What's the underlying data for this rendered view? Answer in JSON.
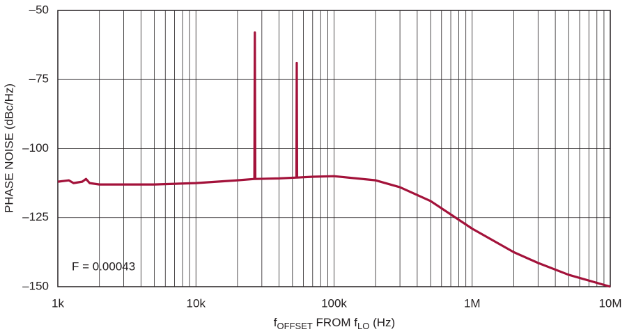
{
  "chart_data": {
    "type": "line",
    "y_label": "PHASE NOISE (dBc/Hz)",
    "x_label": [
      {
        "text": "f"
      },
      {
        "text": "OFFSET",
        "sub": true
      },
      {
        "text": " FROM f"
      },
      {
        "text": "LO",
        "sub": true
      },
      {
        "text": " (Hz)"
      }
    ],
    "annotation": "F = 0.00043",
    "log_x": true,
    "grid": true,
    "xlim": [
      1000,
      10000000
    ],
    "ylim": [
      -150,
      -50
    ],
    "xticks": [
      {
        "value": 1000,
        "label": "1k"
      },
      {
        "value": 10000,
        "label": "10k"
      },
      {
        "value": 100000,
        "label": "100k"
      },
      {
        "value": 1000000,
        "label": "1M"
      },
      {
        "value": 10000000,
        "label": "10M"
      }
    ],
    "xminorticks": [
      2000,
      3000,
      4000,
      5000,
      6000,
      7000,
      8000,
      9000,
      20000,
      30000,
      40000,
      50000,
      60000,
      70000,
      80000,
      90000,
      200000,
      300000,
      400000,
      500000,
      600000,
      700000,
      800000,
      900000,
      2000000,
      3000000,
      4000000,
      5000000,
      6000000,
      7000000,
      8000000,
      9000000
    ],
    "yticks": [
      {
        "value": -50,
        "label": "–50"
      },
      {
        "value": -75,
        "label": "–75"
      },
      {
        "value": -100,
        "label": "–100"
      },
      {
        "value": -125,
        "label": "–125"
      },
      {
        "value": -150,
        "label": "–150"
      }
    ],
    "series": [
      {
        "color": "#a3123a",
        "x": [
          1000,
          1200,
          1300,
          1500,
          1600,
          1700,
          2000,
          3000,
          5000,
          10000,
          20000,
          26500,
          26700,
          26900,
          40000,
          53400,
          53700,
          54000,
          70000,
          100000,
          200000,
          300000,
          500000,
          1000000,
          2000000,
          3000000,
          5000000,
          10000000
        ],
        "values": [
          -112,
          -111.5,
          -112.5,
          -112,
          -111,
          -112.5,
          -113,
          -113,
          -113,
          -112.5,
          -111.5,
          -111,
          -58,
          -111,
          -110.8,
          -110.5,
          -69,
          -110.5,
          -110.2,
          -110,
          -111.5,
          -114,
          -119,
          -129,
          -137.5,
          -141.4,
          -145.7,
          -150
        ]
      }
    ]
  }
}
